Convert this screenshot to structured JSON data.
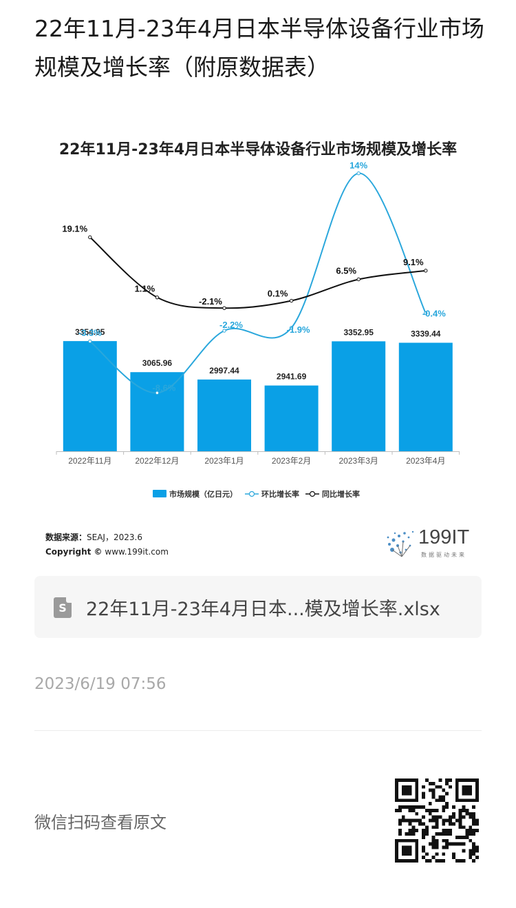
{
  "article": {
    "title": "22年11月-23年4月日本半导体设备行业市场规模及增长率（附原数据表）"
  },
  "chart_data": {
    "type": "bar",
    "title": "22年11月-23年4月日本半导体设备行业市场规模及增长率",
    "categories": [
      "2022年11月",
      "2022年12月",
      "2023年1月",
      "2023年2月",
      "2023年3月",
      "2023年4月"
    ],
    "series": [
      {
        "name": "市场规模（亿日元）",
        "type": "bar",
        "values": [
          3354.95,
          3065.96,
          2997.44,
          2941.69,
          3352.95,
          3339.44
        ],
        "labels": [
          "3354.95",
          "3065.96",
          "2997.44",
          "2941.69",
          "3352.95",
          "3339.44"
        ],
        "color": "#0aa0e6"
      },
      {
        "name": "环比增长率",
        "type": "line",
        "values": [
          -3.3,
          -8.6,
          -2.2,
          -1.9,
          14,
          -0.4
        ],
        "labels": [
          "-3.3%",
          "-8.6%",
          "-2.2%",
          "-1.9%",
          "14%",
          "-0.4%"
        ],
        "color": "#2aa7dc"
      },
      {
        "name": "同比增长率",
        "type": "line",
        "values": [
          19.1,
          1.1,
          -2.1,
          0.1,
          6.5,
          9.1
        ],
        "labels": [
          "19.1%",
          "1.1%",
          "-2.1%",
          "0.1%",
          "6.5%",
          "9.1%"
        ],
        "color": "#111111"
      }
    ],
    "legend_position": "bottom",
    "grid": false
  },
  "source": {
    "label": "数据来源：",
    "value": "SEAJ，2023.6",
    "copyright_label": "Copyright ©",
    "copyright_value": "www.199it.com"
  },
  "logo": {
    "text": "199IT",
    "tagline": "数据驱动未来"
  },
  "attachment": {
    "file_name": "22年11月-23年4月日本...模及增长率.xlsx",
    "icon_letter": "S"
  },
  "meta": {
    "timestamp": "2023/6/19 07:56",
    "scan_prompt": "微信扫码查看原文"
  }
}
